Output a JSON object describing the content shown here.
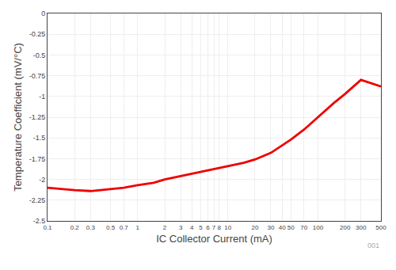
{
  "chart_data": {
    "type": "line",
    "xlabel": "IC Collector Current (mA)",
    "ylabel": "Temperature Coefficient (mV/°C)",
    "x": [
      0.1,
      0.15,
      0.2,
      0.3,
      0.5,
      0.7,
      1.0,
      1.5,
      2.0,
      3.0,
      4.0,
      5.0,
      7.0,
      10.0,
      15.0,
      20.0,
      30.0,
      50.0,
      70.0,
      100.0,
      150.0,
      200.0,
      300.0,
      500.0
    ],
    "values": [
      -2.1,
      -2.12,
      -2.13,
      -2.14,
      -2.12,
      -2.1,
      -2.07,
      -2.04,
      -2.0,
      -1.96,
      -1.93,
      -1.91,
      -1.87,
      -1.84,
      -1.8,
      -1.76,
      -1.68,
      -1.52,
      -1.4,
      -1.25,
      -1.08,
      -0.97,
      -0.8,
      -0.88
    ],
    "color": "#ee0000",
    "log": "x",
    "xlim": [
      0.1,
      500
    ],
    "ylim": [
      -2.5,
      0
    ],
    "xticks": [
      0.1,
      0.2,
      0.3,
      0.5,
      0.7,
      1,
      2,
      3,
      4,
      5,
      6,
      7,
      8,
      10,
      20,
      30,
      40,
      50,
      70,
      100,
      200,
      300,
      500
    ],
    "yticks": [
      0,
      -0.25,
      -0.5,
      -0.75,
      -1,
      -1.25,
      -1.5,
      -1.75,
      -2,
      -2.25,
      -2.5
    ],
    "grid": true,
    "annotations": [
      "001"
    ]
  }
}
